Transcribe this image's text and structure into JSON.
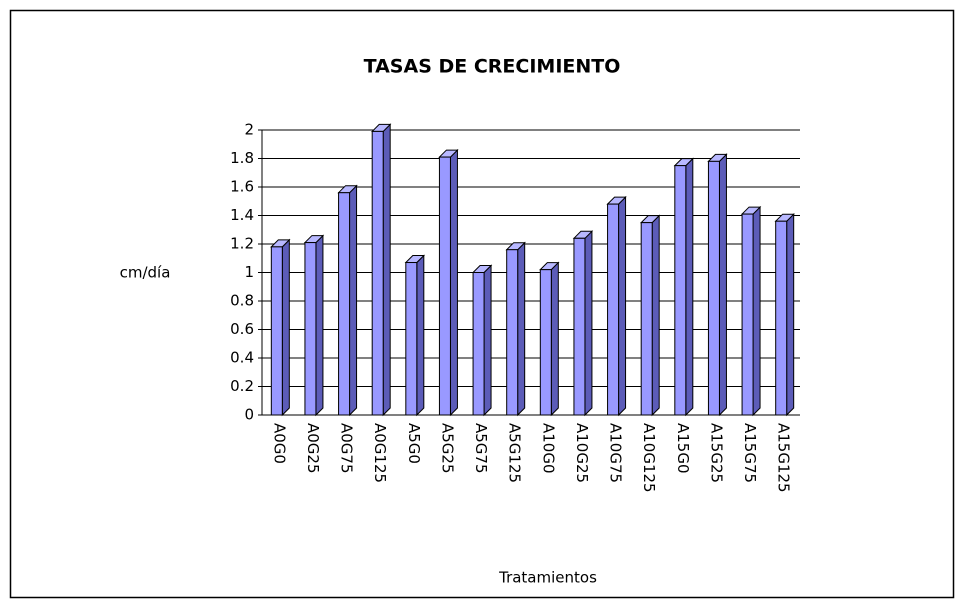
{
  "chart_data": {
    "type": "bar",
    "title": "TASAS DE CRECIMIENTO",
    "y_label": "cm/día",
    "x_label": "Tratamientos",
    "categories": [
      "A0G0",
      "A0G25",
      "A0G75",
      "A0G125",
      "A5G0",
      "A5G25",
      "A5G75",
      "A5G125",
      "A10G0",
      "A10G25",
      "A10G75",
      "A10G125",
      "A15G0",
      "A15G25",
      "A15G75",
      "A15G125"
    ],
    "values": [
      1.18,
      1.21,
      1.56,
      1.99,
      1.07,
      1.81,
      1.0,
      1.16,
      1.02,
      1.24,
      1.48,
      1.35,
      1.75,
      1.78,
      1.41,
      1.36
    ],
    "color": "#9999ff",
    "ylim": [
      0,
      2
    ],
    "yticks": [
      0,
      0.2,
      0.4,
      0.6,
      0.8,
      1,
      1.2,
      1.4,
      1.6,
      1.8,
      2
    ],
    "grid": true
  }
}
